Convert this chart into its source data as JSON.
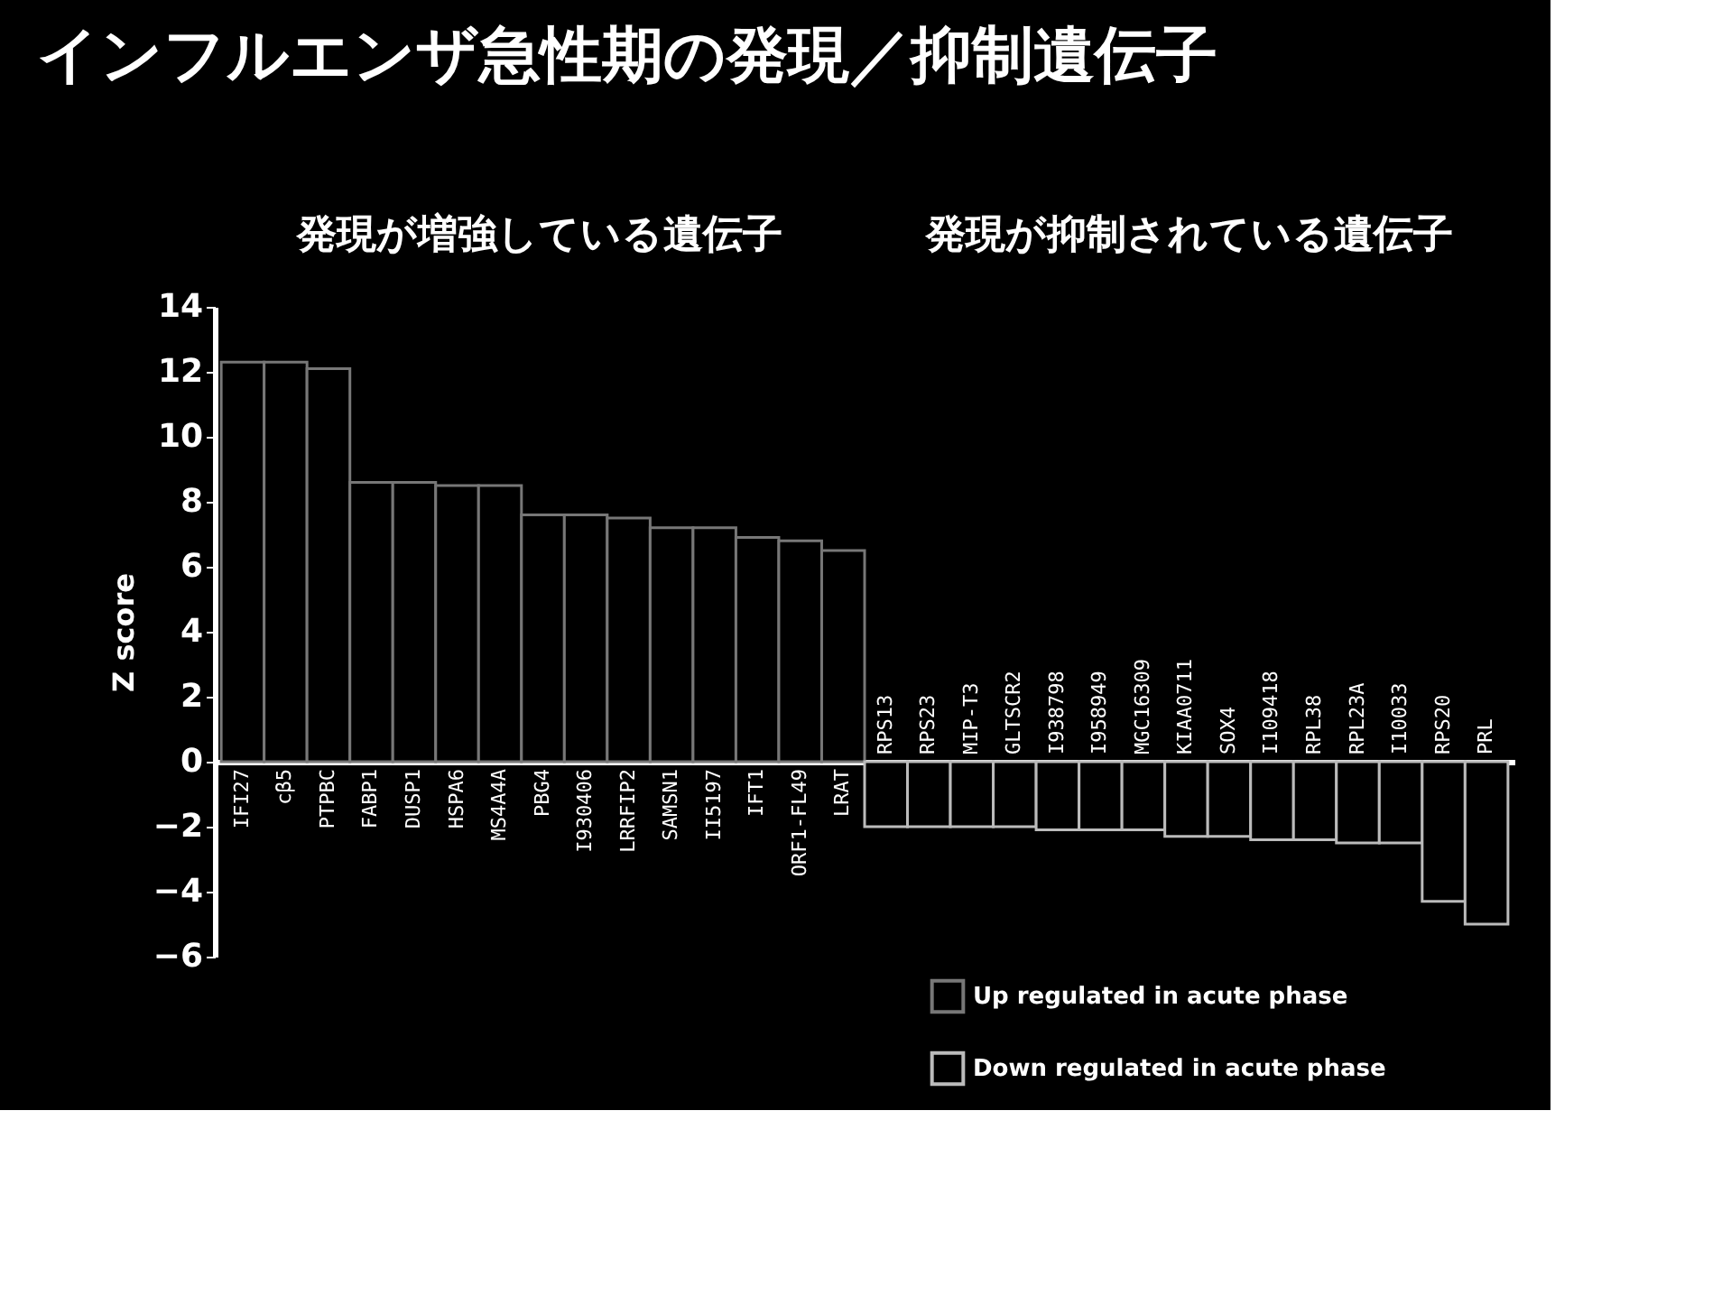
{
  "chart_data": {
    "type": "bar",
    "title": "インフルエンザ急性期の発現／抑制遺伝子",
    "annotations": [
      "発現が増強している遺伝子",
      "発現が抑制されている遺伝子"
    ],
    "ylabel": "Z score",
    "categories": [
      "IFI27",
      "cβ5",
      "PTPBC",
      "FABP1",
      "DUSP1",
      "HSPA6",
      "MS4A4A",
      "PBG4",
      "I930406",
      "LRRFIP2",
      "SAMSN1",
      "II5197",
      "IFT1",
      "ORF1-FL49",
      "LRAT",
      "RPS13",
      "RPS23",
      "MIP-T3",
      "GLTSCR2",
      "I938798",
      "I958949",
      "MGC16309",
      "KIAA0711",
      "SOX4",
      "I109418",
      "RPL38",
      "RPL23A",
      "I10033",
      "RPS20",
      "PRL"
    ],
    "series": [
      {
        "name": "Up regulated in acute phase",
        "color": "#000000",
        "values": [
          12.3,
          12.3,
          12.1,
          8.6,
          8.6,
          8.5,
          8.5,
          7.6,
          7.6,
          7.5,
          7.2,
          7.2,
          6.9,
          6.8,
          6.5,
          null,
          null,
          null,
          null,
          null,
          null,
          null,
          null,
          null,
          null,
          null,
          null,
          null,
          null,
          null
        ]
      },
      {
        "name": "Down regulated in acute phase",
        "color": "#000000",
        "values": [
          null,
          null,
          null,
          null,
          null,
          null,
          null,
          null,
          null,
          null,
          null,
          null,
          null,
          null,
          null,
          -2.0,
          -2.0,
          -2.0,
          -2.0,
          -2.1,
          -2.1,
          -2.1,
          -2.3,
          -2.3,
          -2.4,
          -2.4,
          -2.5,
          -2.5,
          -4.3,
          -5.0
        ]
      }
    ],
    "ylim": [
      -6,
      14
    ],
    "yticks": [
      -6,
      -4,
      -2,
      0,
      2,
      4,
      6,
      8,
      10,
      12,
      14
    ],
    "grid": false,
    "legend": "bottom right"
  }
}
